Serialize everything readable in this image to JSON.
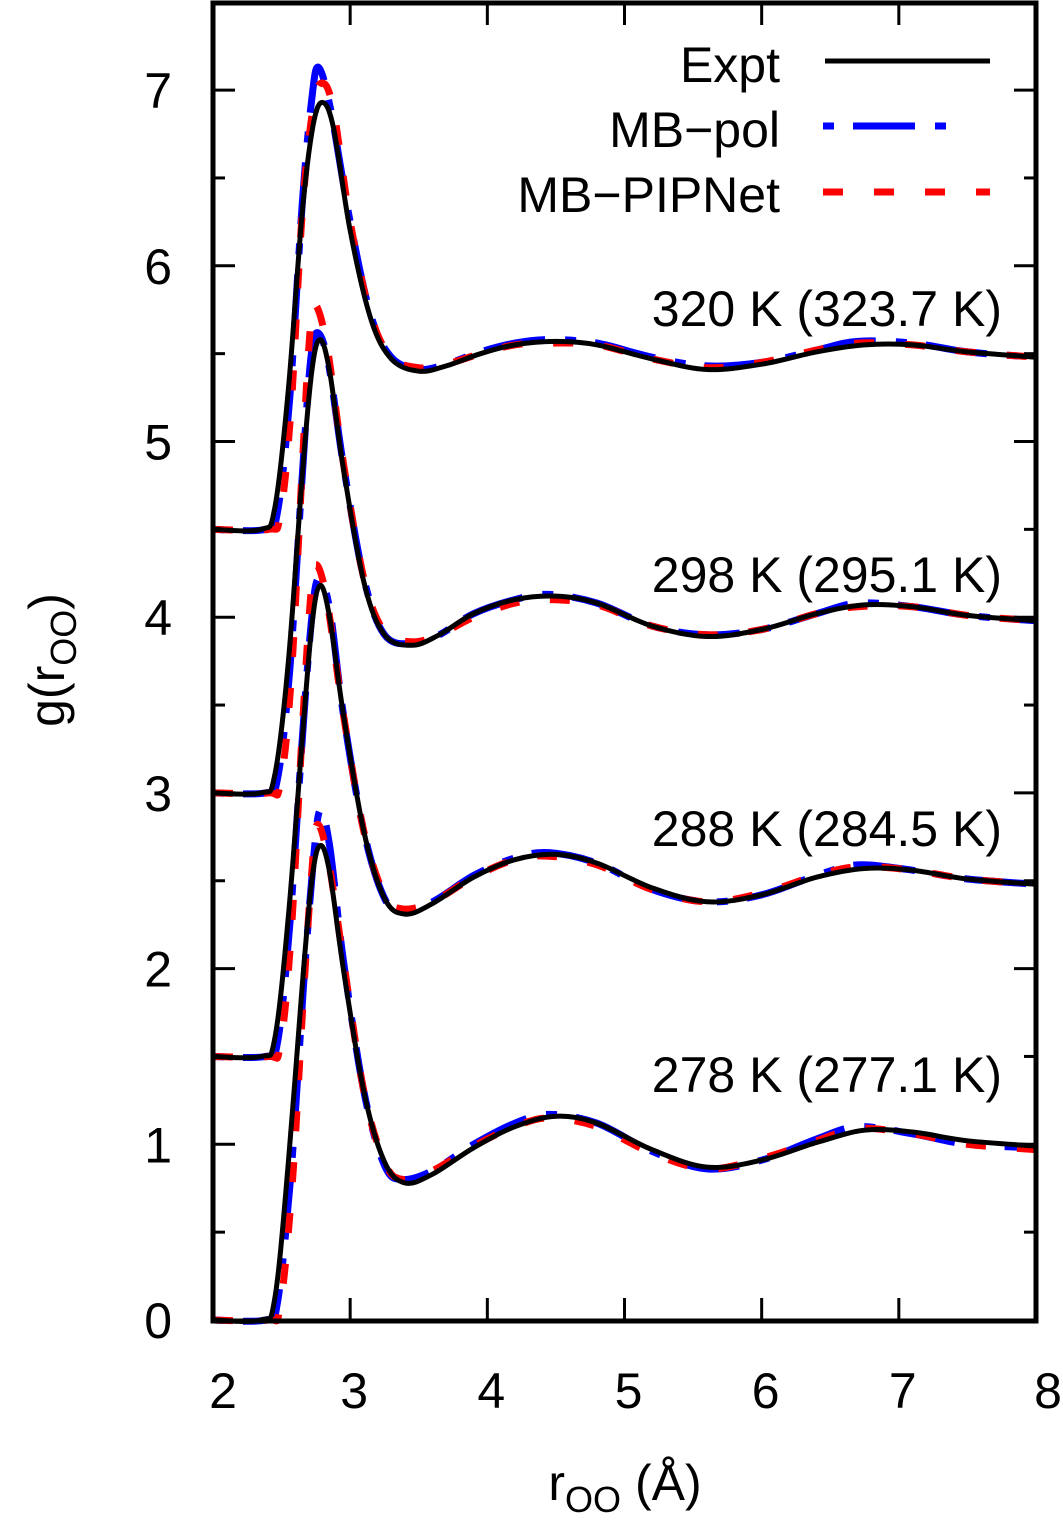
{
  "chart_data": {
    "type": "line",
    "title": "",
    "xlabel": "r_OO (Å)",
    "xlabel_main": "r",
    "xlabel_sub": "OO",
    "xlabel_unit": " (Å)",
    "ylabel": "g(r_OO)",
    "ylabel_main": "g(r",
    "ylabel_sub": "OO",
    "ylabel_close": ")",
    "xlim": [
      2,
      8
    ],
    "ylim": [
      0,
      7.5
    ],
    "xticks": [
      2,
      3,
      4,
      5,
      6,
      7,
      8
    ],
    "yticks": [
      0,
      1,
      2,
      3,
      4,
      5,
      6,
      7
    ],
    "grid": false,
    "legend_position": "top-right",
    "legend": [
      {
        "label": "Expt",
        "color": "#000000",
        "style": "solid"
      },
      {
        "label": "MB−pol",
        "color": "#0000ff",
        "style": "dash-dot"
      },
      {
        "label": "MB−PIPNet",
        "color": "#ff0000",
        "style": "dashed"
      }
    ],
    "annotations": [
      {
        "text": "320 K (323.7 K)",
        "x": 5.7,
        "y": 5.9
      },
      {
        "text": "298 K (295.1 K)",
        "x": 5.7,
        "y": 4.4
      },
      {
        "text": "288 K (284.5 K)",
        "x": 5.7,
        "y": 2.9
      },
      {
        "text": "278 K (277.1 K)",
        "x": 5.7,
        "y": 1.4
      }
    ],
    "panels": [
      {
        "temperature": "278 K (277.1 K)",
        "offset": 0.0,
        "series": [
          {
            "name": "Expt",
            "x": [
              2.0,
              2.35,
              2.45,
              2.55,
              2.65,
              2.72,
              2.78,
              2.85,
              2.95,
              3.1,
              3.25,
              3.4,
              3.6,
              3.9,
              4.2,
              4.5,
              4.8,
              5.2,
              5.6,
              6.0,
              6.4,
              6.75,
              7.1,
              7.5,
              8.0
            ],
            "y": [
              0.0,
              0.0,
              0.12,
              0.9,
              1.9,
              2.5,
              2.7,
              2.55,
              2.0,
              1.3,
              0.9,
              0.78,
              0.83,
              0.98,
              1.1,
              1.16,
              1.12,
              0.97,
              0.87,
              0.91,
              1.01,
              1.08,
              1.07,
              1.02,
              0.99
            ]
          },
          {
            "name": "MB-pol",
            "x": [
              2.0,
              2.38,
              2.47,
              2.57,
              2.66,
              2.73,
              2.78,
              2.85,
              2.95,
              3.1,
              3.25,
              3.38,
              3.6,
              3.9,
              4.2,
              4.45,
              4.8,
              5.2,
              5.6,
              6.0,
              6.4,
              6.7,
              7.1,
              7.5,
              8.0
            ],
            "y": [
              0.0,
              0.0,
              0.1,
              0.85,
              1.9,
              2.6,
              2.9,
              2.7,
              2.05,
              1.3,
              0.88,
              0.8,
              0.85,
              1.0,
              1.12,
              1.17,
              1.12,
              0.96,
              0.86,
              0.91,
              1.03,
              1.1,
              1.06,
              1.0,
              0.98
            ]
          },
          {
            "name": "MB-PIPNet",
            "x": [
              2.0,
              2.4,
              2.49,
              2.58,
              2.66,
              2.72,
              2.76,
              2.84,
              2.95,
              3.1,
              3.25,
              3.38,
              3.6,
              3.9,
              4.2,
              4.45,
              4.8,
              5.2,
              5.6,
              6.0,
              6.4,
              6.7,
              7.1,
              7.5,
              8.0
            ],
            "y": [
              0.0,
              0.0,
              0.08,
              0.8,
              1.85,
              2.55,
              2.82,
              2.62,
              2.05,
              1.3,
              0.9,
              0.8,
              0.85,
              0.99,
              1.1,
              1.15,
              1.1,
              0.95,
              0.86,
              0.92,
              1.02,
              1.09,
              1.06,
              1.0,
              0.97
            ]
          }
        ]
      },
      {
        "temperature": "288 K (284.5 K)",
        "offset": 1.5,
        "series": [
          {
            "name": "Expt",
            "x": [
              2.0,
              2.35,
              2.45,
              2.55,
              2.65,
              2.72,
              2.78,
              2.85,
              2.95,
              3.1,
              3.25,
              3.4,
              3.6,
              3.9,
              4.2,
              4.5,
              4.8,
              5.2,
              5.6,
              6.0,
              6.4,
              6.75,
              7.1,
              7.5,
              8.0
            ],
            "y": [
              1.5,
              1.5,
              1.6,
              2.3,
              3.3,
              3.95,
              4.18,
              4.0,
              3.45,
              2.78,
              2.4,
              2.31,
              2.37,
              2.52,
              2.62,
              2.65,
              2.6,
              2.46,
              2.38,
              2.42,
              2.52,
              2.57,
              2.56,
              2.51,
              2.48
            ]
          },
          {
            "name": "MB-pol",
            "x": [
              2.0,
              2.38,
              2.47,
              2.56,
              2.65,
              2.72,
              2.77,
              2.85,
              2.95,
              3.1,
              3.25,
              3.38,
              3.6,
              3.9,
              4.2,
              4.45,
              4.8,
              5.2,
              5.6,
              6.0,
              6.4,
              6.7,
              7.1,
              7.5,
              8.0
            ],
            "y": [
              1.5,
              1.5,
              1.58,
              2.25,
              3.3,
              4.0,
              4.22,
              4.05,
              3.45,
              2.78,
              2.4,
              2.33,
              2.38,
              2.53,
              2.63,
              2.66,
              2.6,
              2.45,
              2.38,
              2.42,
              2.53,
              2.59,
              2.56,
              2.51,
              2.48
            ]
          },
          {
            "name": "MB-PIPNet",
            "x": [
              2.0,
              2.4,
              2.49,
              2.57,
              2.65,
              2.71,
              2.75,
              2.83,
              2.95,
              3.1,
              3.25,
              3.38,
              3.6,
              3.9,
              4.2,
              4.45,
              4.8,
              5.2,
              5.6,
              6.0,
              6.4,
              6.7,
              7.1,
              7.5,
              8.0
            ],
            "y": [
              1.5,
              1.5,
              1.56,
              2.2,
              3.35,
              4.1,
              4.3,
              4.1,
              3.45,
              2.78,
              2.42,
              2.34,
              2.38,
              2.52,
              2.62,
              2.64,
              2.59,
              2.45,
              2.38,
              2.43,
              2.53,
              2.58,
              2.56,
              2.51,
              2.48
            ]
          }
        ]
      },
      {
        "temperature": "298 K (295.1 K)",
        "offset": 3.0,
        "series": [
          {
            "name": "Expt",
            "x": [
              2.0,
              2.35,
              2.45,
              2.55,
              2.65,
              2.72,
              2.78,
              2.85,
              2.95,
              3.1,
              3.25,
              3.45,
              3.65,
              3.9,
              4.2,
              4.5,
              4.8,
              5.2,
              5.6,
              6.0,
              6.4,
              6.75,
              7.1,
              7.5,
              8.0
            ],
            "y": [
              3.0,
              3.0,
              3.1,
              3.75,
              4.8,
              5.4,
              5.58,
              5.4,
              4.85,
              4.2,
              3.9,
              3.84,
              3.9,
              4.02,
              4.1,
              4.12,
              4.08,
              3.95,
              3.89,
              3.93,
              4.02,
              4.07,
              4.06,
              4.01,
              3.98
            ]
          },
          {
            "name": "MB-pol",
            "x": [
              2.0,
              2.38,
              2.47,
              2.56,
              2.65,
              2.71,
              2.76,
              2.84,
              2.95,
              3.1,
              3.25,
              3.45,
              3.65,
              3.9,
              4.2,
              4.45,
              4.8,
              5.2,
              5.6,
              6.0,
              6.4,
              6.7,
              7.1,
              7.5,
              8.0
            ],
            "y": [
              3.0,
              3.0,
              3.08,
              3.7,
              4.8,
              5.45,
              5.62,
              5.45,
              4.87,
              4.22,
              3.9,
              3.85,
              3.9,
              4.02,
              4.1,
              4.13,
              4.08,
              3.95,
              3.9,
              3.93,
              4.02,
              4.08,
              4.06,
              4.01,
              3.98
            ]
          },
          {
            "name": "MB-PIPNet",
            "x": [
              2.0,
              2.4,
              2.49,
              2.57,
              2.65,
              2.7,
              2.74,
              2.83,
              2.95,
              3.1,
              3.25,
              3.45,
              3.65,
              3.9,
              4.2,
              4.45,
              4.8,
              5.2,
              5.6,
              6.0,
              6.4,
              6.7,
              7.1,
              7.5,
              8.0
            ],
            "y": [
              3.0,
              3.0,
              3.05,
              3.65,
              4.85,
              5.55,
              5.78,
              5.55,
              4.88,
              4.22,
              3.92,
              3.86,
              3.9,
              4.0,
              4.08,
              4.1,
              4.07,
              3.95,
              3.9,
              3.93,
              4.02,
              4.06,
              4.06,
              4.01,
              3.98
            ]
          }
        ]
      },
      {
        "temperature": "320 K (323.7 K)",
        "offset": 4.5,
        "series": [
          {
            "name": "Expt",
            "x": [
              2.0,
              2.35,
              2.45,
              2.55,
              2.65,
              2.73,
              2.8,
              2.88,
              3.0,
              3.15,
              3.3,
              3.5,
              3.7,
              3.95,
              4.2,
              4.5,
              4.8,
              5.2,
              5.6,
              6.0,
              6.4,
              6.75,
              7.1,
              7.5,
              8.0
            ],
            "y": [
              4.5,
              4.5,
              4.62,
              5.3,
              6.3,
              6.8,
              6.93,
              6.78,
              6.2,
              5.7,
              5.47,
              5.4,
              5.43,
              5.5,
              5.55,
              5.57,
              5.55,
              5.47,
              5.41,
              5.44,
              5.51,
              5.55,
              5.55,
              5.51,
              5.48
            ]
          },
          {
            "name": "MB-pol",
            "x": [
              2.0,
              2.38,
              2.47,
              2.56,
              2.65,
              2.72,
              2.77,
              2.86,
              3.0,
              3.15,
              3.3,
              3.5,
              3.7,
              3.95,
              4.2,
              4.45,
              4.8,
              5.2,
              5.6,
              6.0,
              6.4,
              6.7,
              7.1,
              7.5,
              8.0
            ],
            "y": [
              4.5,
              4.5,
              4.6,
              5.25,
              6.35,
              6.95,
              7.13,
              6.88,
              6.25,
              5.72,
              5.48,
              5.41,
              5.44,
              5.51,
              5.56,
              5.58,
              5.56,
              5.48,
              5.43,
              5.45,
              5.52,
              5.57,
              5.56,
              5.51,
              5.48
            ]
          },
          {
            "name": "MB-PIPNet",
            "x": [
              2.0,
              2.4,
              2.49,
              2.57,
              2.65,
              2.73,
              2.8,
              2.88,
              3.0,
              3.15,
              3.3,
              3.5,
              3.7,
              3.95,
              4.2,
              4.45,
              4.8,
              5.2,
              5.6,
              6.0,
              6.4,
              6.7,
              7.1,
              7.5,
              8.0
            ],
            "y": [
              4.5,
              4.5,
              4.58,
              5.2,
              6.3,
              6.9,
              7.04,
              6.88,
              6.25,
              5.72,
              5.48,
              5.42,
              5.44,
              5.5,
              5.55,
              5.56,
              5.55,
              5.47,
              5.42,
              5.45,
              5.52,
              5.56,
              5.55,
              5.51,
              5.48
            ]
          }
        ]
      }
    ]
  }
}
